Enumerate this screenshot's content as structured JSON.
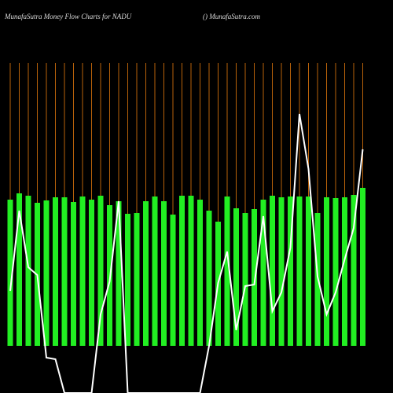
{
  "chart_data": {
    "type": "bar_line",
    "title": "MunafaSutra  Money Flow  Charts for NADU",
    "subtitle": "() MunafaSutra.com",
    "ylim": [
      -60,
      360
    ],
    "grid": true,
    "grid_color": "#b8620a",
    "bar_color": "#22ee22",
    "line_color": "#ffffff",
    "bars": [
      186,
      194,
      191,
      182,
      185,
      189,
      189,
      183,
      190,
      186,
      191,
      179,
      184,
      168,
      169,
      184,
      190,
      184,
      167,
      191,
      191,
      186,
      172,
      158,
      190,
      175,
      169,
      174,
      186,
      191,
      189,
      190,
      190,
      190,
      169,
      189,
      188,
      189,
      192,
      201
    ],
    "line": [
      70,
      172,
      100,
      90,
      -15,
      -17,
      -60,
      -60,
      -60,
      -60,
      40,
      82,
      184,
      -60,
      -60,
      -60,
      -60,
      -60,
      -60,
      -60,
      -60,
      -60,
      0,
      80,
      120,
      20,
      76,
      78,
      165,
      44,
      68,
      125,
      295,
      225,
      88,
      40,
      68,
      110,
      150,
      250
    ]
  }
}
